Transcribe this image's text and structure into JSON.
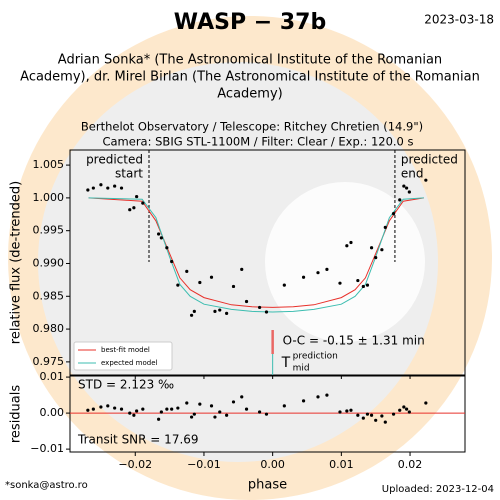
{
  "title": "WASP − 37b",
  "date": "2023-03-18",
  "authors": [
    "Adrian Sonka* (The Astronomical Institute of the Romanian",
    "Academy), dr. Mirel Birlan (The Astronomical Institute of the Romanian",
    "Academy)"
  ],
  "subtitle": [
    "Berthelot Observatory / Telescope: Ritchey Chretien (14.9\")",
    "Camera: SBIG STL-1100M / Filter: Clear / Exp.: 120.0 s"
  ],
  "footer_left": "*sonka@astro.ro",
  "footer_right": "Uploaded: 2023-12-04",
  "chart_data": [
    {
      "type": "scatter",
      "y_label": "relative flux (de-trended)",
      "ylim": [
        0.973,
        1.0073
      ],
      "yticks": [
        1.005,
        {
          "value": 1.0,
          "label": "1.000"
        },
        0.995,
        {
          "value": 0.99,
          "label": "0.990"
        },
        0.985,
        {
          "value": 0.98,
          "label": "0.980"
        },
        0.975
      ],
      "x": [
        -0.0269,
        -0.0261,
        -0.025,
        -0.024,
        -0.023,
        -0.022,
        -0.0208,
        -0.0202,
        -0.0198,
        -0.0189,
        -0.0166,
        -0.0162,
        -0.0154,
        -0.0147,
        -0.0138,
        -0.0125,
        -0.0118,
        -0.0114,
        -0.0106,
        -0.0089,
        -0.0084,
        -0.0077,
        -0.0067,
        -0.0057,
        -0.0045,
        -0.0038,
        -0.0019,
        -0.0009,
        0.0017,
        0.0045,
        0.0066,
        0.0079,
        0.0098,
        0.0108,
        0.0114,
        0.0124,
        0.0132,
        0.0138,
        0.0144,
        0.015,
        0.0159,
        0.0164,
        0.0176,
        0.0185,
        0.0191,
        0.0195,
        0.0199,
        0.0223
      ],
      "values": [
        1.0012,
        1.0015,
        1.002,
        1.0015,
        1.0018,
        1.0015,
        0.9982,
        0.9985,
        1.0002,
        0.9992,
        0.9945,
        0.9939,
        0.9924,
        0.9903,
        0.9867,
        0.9888,
        0.9821,
        0.9827,
        0.9871,
        0.9879,
        0.9827,
        0.9829,
        0.9824,
        0.9865,
        0.9891,
        0.9842,
        0.9833,
        0.9826,
        0.9867,
        0.9879,
        0.9886,
        0.9891,
        0.987,
        0.9927,
        0.9932,
        0.9874,
        0.9865,
        0.9867,
        0.9924,
        0.9909,
        0.9921,
        0.9955,
        0.9976,
        0.9997,
        1.0018,
        1.0015,
        1.0009,
        1.0027
      ],
      "color": "#000000",
      "models": [
        {
          "name": "best-fit model",
          "color": "#e8302a",
          "x": [
            -0.0268,
            -0.019,
            -0.017,
            -0.015,
            -0.0135,
            -0.012,
            -0.01,
            -0.006,
            -0.003,
            0,
            0.003,
            0.006,
            0.01,
            0.012,
            0.0135,
            0.015,
            0.017,
            0.019,
            0.022
          ],
          "values": [
            1.0,
            0.9995,
            0.9965,
            0.9915,
            0.9878,
            0.986,
            0.9848,
            0.9837,
            0.9834,
            0.9833,
            0.9834,
            0.9837,
            0.9848,
            0.986,
            0.9878,
            0.9915,
            0.9965,
            0.9995,
            1.0
          ]
        },
        {
          "name": "expected model",
          "color": "#3cbdb0",
          "x": [
            -0.0268,
            -0.019,
            -0.017,
            -0.015,
            -0.0135,
            -0.012,
            -0.01,
            -0.006,
            -0.003,
            0,
            0.003,
            0.006,
            0.01,
            0.012,
            0.0135,
            0.015,
            0.017,
            0.019,
            0.022
          ],
          "values": [
            1.0,
            0.9998,
            0.997,
            0.991,
            0.9868,
            0.985,
            0.9838,
            0.983,
            0.9827,
            0.9826,
            0.9827,
            0.983,
            0.9838,
            0.985,
            0.9868,
            0.991,
            0.997,
            0.9998,
            1.0
          ]
        }
      ],
      "legend": "lower left",
      "predicted_start": [
        "predicted",
        "start"
      ],
      "predicted_start_x": -0.018,
      "predicted_end": [
        "predicted",
        "end"
      ],
      "predicted_end_x": 0.0178,
      "oc_label": "O-C = -0.15 ± 1.31 min",
      "tmid_x": 0,
      "tmid_label": {
        "base": "T",
        "sup": "prediction",
        "sub": "mid"
      }
    },
    {
      "type": "scatter",
      "x_label": "phase",
      "y_label": "residuals",
      "xlim": [
        -0.0295,
        0.028
      ],
      "xticks": [
        {
          "value": -0.02,
          "label": "−0.02"
        },
        {
          "value": -0.01,
          "label": "−0.01"
        },
        {
          "value": 0,
          "label": "0.00"
        },
        0.01,
        0.02
      ],
      "ylim": [
        -0.0108,
        0.0103
      ],
      "yticks": [
        0.01,
        {
          "value": 0,
          "label": "0.00"
        },
        {
          "value": -0.01,
          "label": "−0.01"
        }
      ],
      "x": [
        -0.0269,
        -0.0261,
        -0.025,
        -0.024,
        -0.023,
        -0.022,
        -0.0208,
        -0.0202,
        -0.0198,
        -0.0189,
        -0.0166,
        -0.0162,
        -0.0154,
        -0.0147,
        -0.0138,
        -0.0125,
        -0.0118,
        -0.0114,
        -0.0106,
        -0.0089,
        -0.0084,
        -0.0077,
        -0.0067,
        -0.0057,
        -0.0045,
        -0.0038,
        -0.0019,
        -0.0009,
        0.0017,
        0.0045,
        0.0066,
        0.0079,
        0.0098,
        0.0108,
        0.0114,
        0.0124,
        0.0132,
        0.0138,
        0.0144,
        0.015,
        0.0159,
        0.0164,
        0.0176,
        0.0185,
        0.0191,
        0.0195,
        0.0199,
        0.0223
      ],
      "values": [
        0.0008,
        0.0011,
        0.0017,
        0.002,
        0.0014,
        0.0011,
        0,
        -0.0006,
        0.0006,
        0.0011,
        -0.0017,
        0.0003,
        0.0011,
        0.0011,
        0.0014,
        0.0028,
        -0.0011,
        -0.0003,
        0.0025,
        0.002,
        -0.0011,
        0.0003,
        -0.0006,
        0.0031,
        0.0045,
        0.0011,
        0.0003,
        -0.0003,
        0.002,
        0.0034,
        0.0045,
        0.005,
        0.0003,
        0.0006,
        0.0008,
        -0.0006,
        -0.0014,
        -0.0003,
        -0.0006,
        -0.002,
        -0.0008,
        -0.0025,
        -0.0003,
        0.0008,
        0.0017,
        0.0011,
        0.0003,
        0.0028
      ],
      "color": "#000000",
      "zero_color": "#e8302a",
      "std_label": "STD = 2.123 ‰",
      "snr_label": "Transit SNR = 17.69"
    }
  ]
}
